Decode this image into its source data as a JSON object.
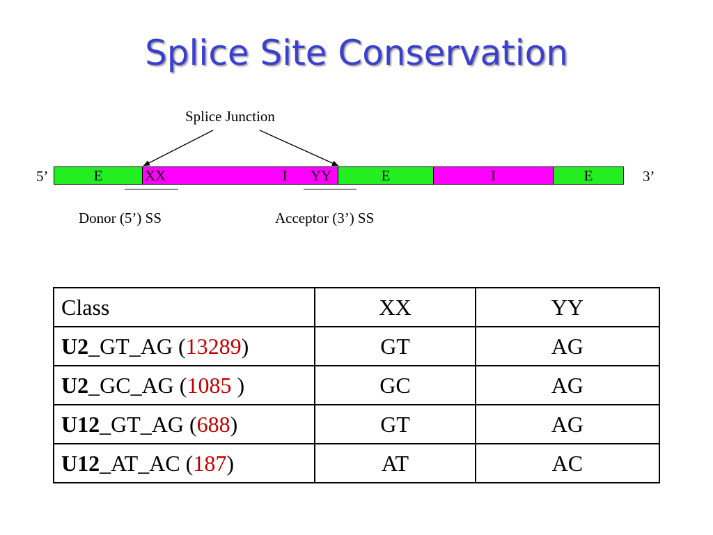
{
  "title": "Splice Site Conservation",
  "diagram": {
    "junction_label": "Splice Junction",
    "prime5": "5’",
    "prime3": "3’",
    "donor_label": "Donor (5’) SS",
    "acceptor_label": "Acceptor (3’) SS",
    "segments": [
      {
        "type": "exon",
        "label": "E"
      },
      {
        "type": "intron",
        "label": "I",
        "left_mark": "XX",
        "right_mark": "YY"
      },
      {
        "type": "exon",
        "label": "E"
      },
      {
        "type": "intron",
        "label": "I"
      },
      {
        "type": "exon",
        "label": "E"
      }
    ],
    "colors": {
      "exon": "#22ee22",
      "intron": "#ff00ff",
      "title": "#3a3fd0",
      "count": "#c00000"
    }
  },
  "table": {
    "headers": [
      "Class",
      "XX",
      "YY"
    ],
    "rows": [
      {
        "class_bold": "U2",
        "class_rest": "_GT_AG (",
        "count": "13289",
        "close": ")",
        "xx": "GT",
        "yy": "AG"
      },
      {
        "class_bold": "U2",
        "class_rest": "_GC_AG (",
        "count": "1085",
        "close": " )",
        "xx": "GC",
        "yy": "AG"
      },
      {
        "class_bold": "U12",
        "class_rest": "_GT_AG (",
        "count": "688",
        "close": ")",
        "xx": "GT",
        "yy": "AG"
      },
      {
        "class_bold": "U12",
        "class_rest": "_AT_AC (",
        "count": "187",
        "close": ")",
        "xx": "AT",
        "yy": "AC"
      }
    ]
  }
}
